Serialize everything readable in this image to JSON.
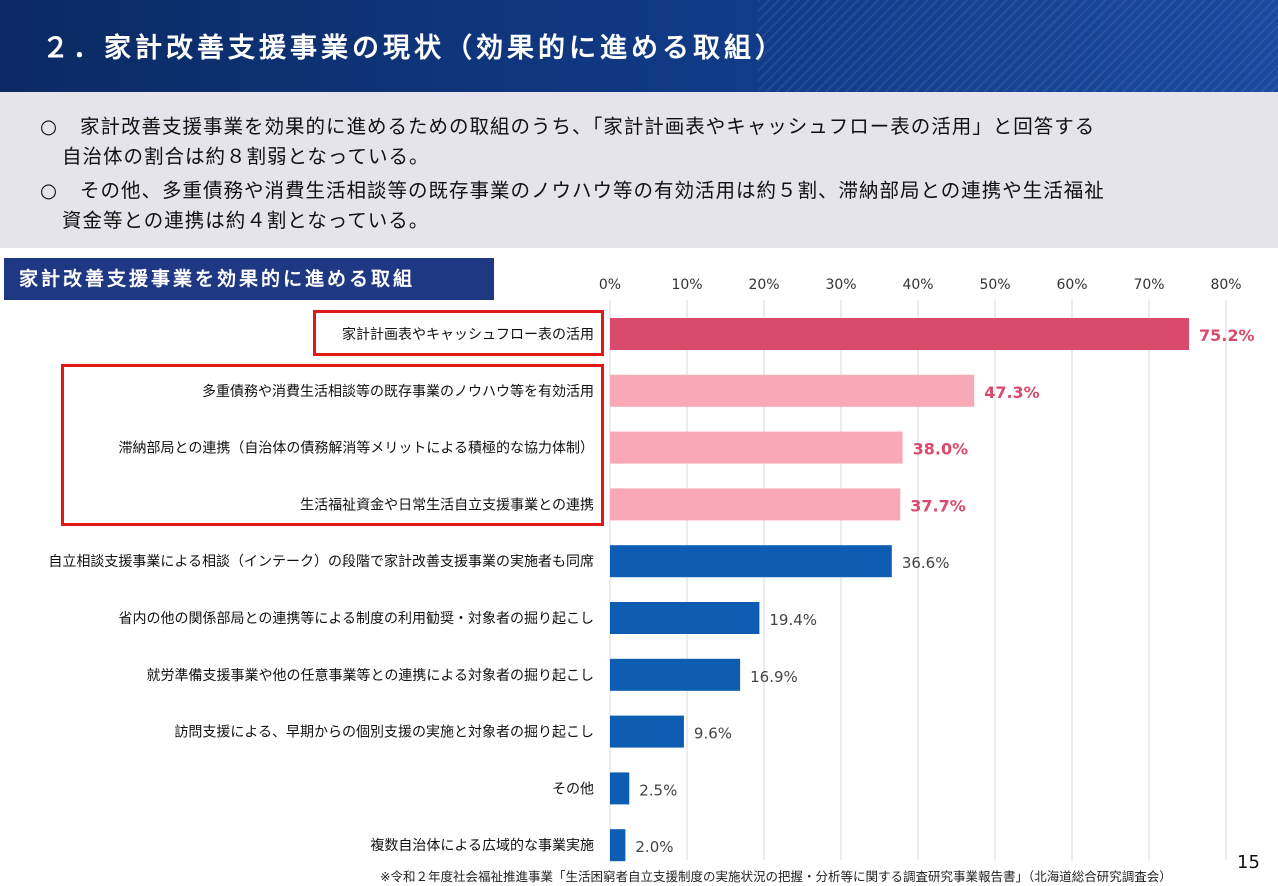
{
  "header": {
    "title": "２．家計改善支援事業の現状（効果的に進める取組）"
  },
  "summary": {
    "items": [
      {
        "mark": "○",
        "line1": "家計改善支援事業を効果的に進めるための取組のうち、「家計計画表やキャッシュフロー表の活用」と回答する",
        "line2": "自治体の割合は約８割弱となっている。"
      },
      {
        "mark": "○",
        "line1": "その他、多重債務や消費生活相談等の既存事業のノウハウ等の有効活用は約５割、滞納部局との連携や生活福祉",
        "line2": "資金等との連携は約４割となっている。"
      }
    ]
  },
  "section_title": "家計改善支援事業を効果的に進める取組",
  "chart_data": {
    "type": "bar",
    "orientation": "horizontal",
    "categories": [
      "家計計画表やキャッシュフロー表の活用",
      "多重債務や消費生活相談等の既存事業のノウハウ等を有効活用",
      "滞納部局との連携（自治体の債務解消等メリットによる積極的な協力体制）",
      "生活福祉資金や日常生活自立支援事業との連携",
      "自立相談支援事業による相談（インテーク）の段階で家計改善支援事業の実施者も同席",
      "省内の他の関係部局との連携等による制度の利用勧奨・対象者の掘り起こし",
      "就労準備支援事業や他の任意事業等との連携による対象者の掘り起こし",
      "訪問支援による、早期からの個別支援の実施と対象者の掘り起こし",
      "その他",
      "複数自治体による広域的な事業実施"
    ],
    "values": [
      75.2,
      47.3,
      38.0,
      37.7,
      36.6,
      19.4,
      16.9,
      9.6,
      2.5,
      2.0
    ],
    "value_labels": [
      "75.2%",
      "47.3%",
      "38.0%",
      "37.7%",
      "36.6%",
      "19.4%",
      "16.9%",
      "9.6%",
      "2.5%",
      "2.0%"
    ],
    "xlim": [
      0,
      80
    ],
    "ticks": [
      "0%",
      "10%",
      "20%",
      "30%",
      "40%",
      "50%",
      "60%",
      "70%",
      "80%"
    ],
    "tick_values": [
      0,
      10,
      20,
      30,
      40,
      50,
      60,
      70,
      80
    ],
    "grid": true,
    "colors": [
      "#d94a6c",
      "#f9a8b6",
      "#f9a8b6",
      "#f9a8b6",
      "#0d5db3",
      "#0d5db3",
      "#0d5db3",
      "#0d5db3",
      "#0d5db3",
      "#0d5db3"
    ],
    "label_colors": [
      "#d94a6c",
      "#d94a6c",
      "#d94a6c",
      "#d94a6c",
      "#444444",
      "#444444",
      "#444444",
      "#444444",
      "#444444",
      "#444444"
    ],
    "label_bold": [
      true,
      true,
      true,
      true,
      false,
      false,
      false,
      false,
      false,
      false
    ],
    "highlight_color": "#e01818"
  },
  "footnote": "※令和２年度社会福祉推進事業「生活困窮者自立支援制度の実施状況の把握・分析等に関する調査研究事業報告書」（北海道総合研究調査会）",
  "page_number": "15"
}
